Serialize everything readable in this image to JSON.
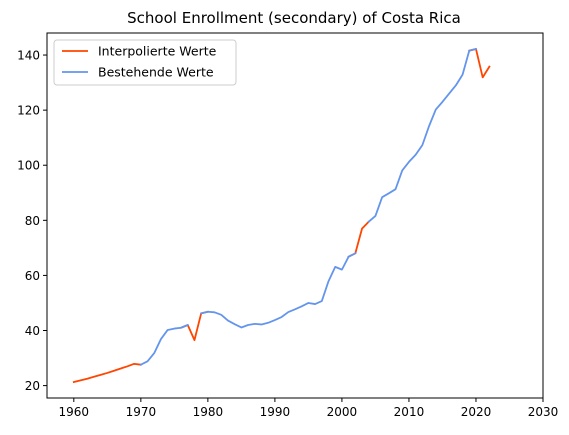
{
  "chart_data": {
    "type": "line",
    "title": "School Enrollment (secondary) of Costa Rica",
    "xlabel": "",
    "ylabel": "",
    "xlim": [
      1956,
      2030
    ],
    "ylim": [
      15.5,
      148
    ],
    "xticks": [
      1960,
      1970,
      1980,
      1990,
      2000,
      2010,
      2020,
      2030
    ],
    "yticks": [
      20,
      40,
      60,
      80,
      100,
      120,
      140
    ],
    "grid": false,
    "legend_position": "top-left",
    "series": [
      {
        "name": "Interpolierte Werte",
        "color": "#ff4500",
        "points": [
          [
            1960,
            21.3
          ],
          [
            1961,
            21.9
          ],
          [
            1962,
            22.5
          ],
          [
            1963,
            23.2
          ],
          [
            1964,
            23.9
          ],
          [
            1965,
            24.6
          ],
          [
            1966,
            25.4
          ],
          [
            1967,
            26.2
          ],
          [
            1968,
            27.0
          ],
          [
            1969,
            27.9
          ],
          [
            1970,
            27.6
          ],
          [
            null,
            null
          ],
          [
            1976,
            41.0
          ],
          [
            1977,
            42.0
          ],
          [
            1978,
            36.5
          ],
          [
            1979,
            46.2
          ],
          [
            1980,
            46.8
          ],
          [
            null,
            null
          ],
          [
            2001,
            66.8
          ],
          [
            2002,
            68.0
          ],
          [
            2003,
            77.0
          ],
          [
            2004,
            79.5
          ],
          [
            null,
            null
          ],
          [
            2019,
            141.6
          ],
          [
            2020,
            142.2
          ],
          [
            2021,
            131.9
          ],
          [
            2022,
            135.8
          ]
        ]
      },
      {
        "name": "Bestehende Werte",
        "color": "#6495ed",
        "points": [
          [
            1970,
            27.6
          ],
          [
            1971,
            28.8
          ],
          [
            1972,
            31.8
          ],
          [
            1973,
            36.9
          ],
          [
            1974,
            40.2
          ],
          [
            1975,
            40.7
          ],
          [
            1976,
            41.0
          ],
          [
            1977,
            42.0
          ],
          [
            null,
            null
          ],
          [
            1979,
            46.2
          ],
          [
            1980,
            46.8
          ],
          [
            1981,
            46.6
          ],
          [
            1982,
            45.7
          ],
          [
            1983,
            43.6
          ],
          [
            1984,
            42.3
          ],
          [
            1985,
            41.1
          ],
          [
            1986,
            42.0
          ],
          [
            1987,
            42.4
          ],
          [
            1988,
            42.2
          ],
          [
            1989,
            42.8
          ],
          [
            1990,
            43.8
          ],
          [
            1991,
            44.9
          ],
          [
            1992,
            46.7
          ],
          [
            1993,
            47.7
          ],
          [
            1994,
            48.8
          ],
          [
            1995,
            50.0
          ],
          [
            1996,
            49.6
          ],
          [
            1997,
            50.7
          ],
          [
            1998,
            57.9
          ],
          [
            1999,
            63.1
          ],
          [
            2000,
            62.1
          ],
          [
            2001,
            66.8
          ],
          [
            2002,
            68.0
          ],
          [
            null,
            null
          ],
          [
            2004,
            79.5
          ],
          [
            2005,
            81.6
          ],
          [
            2006,
            88.4
          ],
          [
            2007,
            89.8
          ],
          [
            2008,
            91.3
          ],
          [
            2009,
            98.1
          ],
          [
            2010,
            101.2
          ],
          [
            2011,
            103.8
          ],
          [
            2012,
            107.3
          ],
          [
            2013,
            114.2
          ],
          [
            2014,
            120.2
          ],
          [
            2015,
            123.0
          ],
          [
            2016,
            126.0
          ],
          [
            2017,
            129.0
          ],
          [
            2018,
            132.9
          ],
          [
            2019,
            141.6
          ],
          [
            2020,
            142.2
          ]
        ]
      }
    ]
  }
}
